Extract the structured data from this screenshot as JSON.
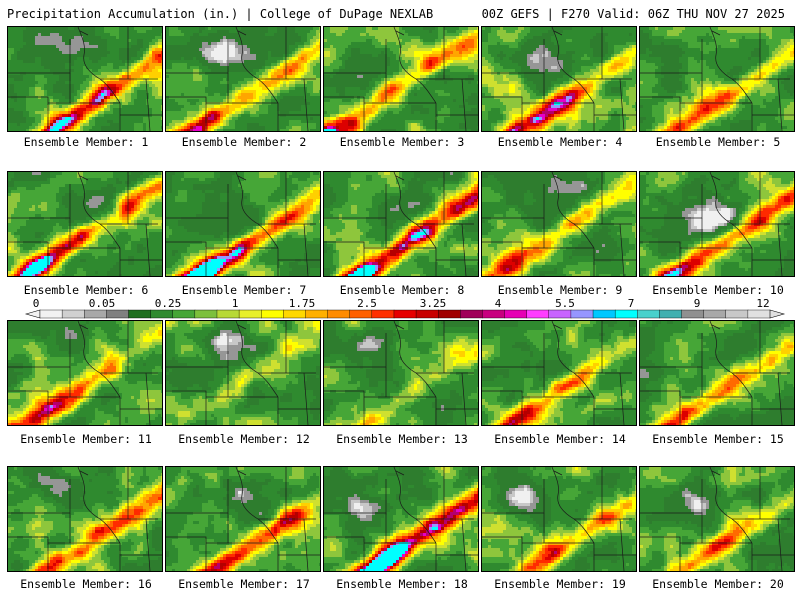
{
  "header": {
    "title": "Precipitation Accumulation (in.) | College of DuPage NEXLAB",
    "run_info": "00Z GEFS | F270 Valid: 06Z THU NOV 27 2025"
  },
  "members": [
    {
      "label": "Ensemble Member: 1"
    },
    {
      "label": "Ensemble Member: 2"
    },
    {
      "label": "Ensemble Member: 3"
    },
    {
      "label": "Ensemble Member: 4"
    },
    {
      "label": "Ensemble Member: 5"
    },
    {
      "label": "Ensemble Member: 6"
    },
    {
      "label": "Ensemble Member: 7"
    },
    {
      "label": "Ensemble Member: 8"
    },
    {
      "label": "Ensemble Member: 9"
    },
    {
      "label": "Ensemble Member: 10"
    },
    {
      "label": "Ensemble Member: 11"
    },
    {
      "label": "Ensemble Member: 12"
    },
    {
      "label": "Ensemble Member: 13"
    },
    {
      "label": "Ensemble Member: 14"
    },
    {
      "label": "Ensemble Member: 15"
    },
    {
      "label": "Ensemble Member: 16"
    },
    {
      "label": "Ensemble Member: 17"
    },
    {
      "label": "Ensemble Member: 18"
    },
    {
      "label": "Ensemble Member: 19"
    },
    {
      "label": "Ensemble Member: 20"
    }
  ],
  "colorbar": {
    "tick_labels": [
      "0",
      "0.05",
      "0.25",
      "1",
      "1.75",
      "2.5",
      "3.25",
      "4",
      "5.5",
      "7",
      "9",
      "12"
    ],
    "colors": [
      "#f2f2f2",
      "#d0d0d0",
      "#a8a8a8",
      "#808080",
      "#1e6e1e",
      "#2f8a2f",
      "#46a637",
      "#7cc03c",
      "#b8d936",
      "#e8ef2a",
      "#ffff00",
      "#ffd800",
      "#ffb000",
      "#ff8c00",
      "#ff6000",
      "#ff3000",
      "#e60000",
      "#c80000",
      "#a00000",
      "#a0005a",
      "#c8007f",
      "#e600b4",
      "#ff3cff",
      "#c864ff",
      "#9696ff",
      "#00c8ff",
      "#00ffff",
      "#48d1cc",
      "#40b0b0",
      "#909090",
      "#a8a8a8",
      "#c8c8c8",
      "#e0e0e0"
    ]
  }
}
